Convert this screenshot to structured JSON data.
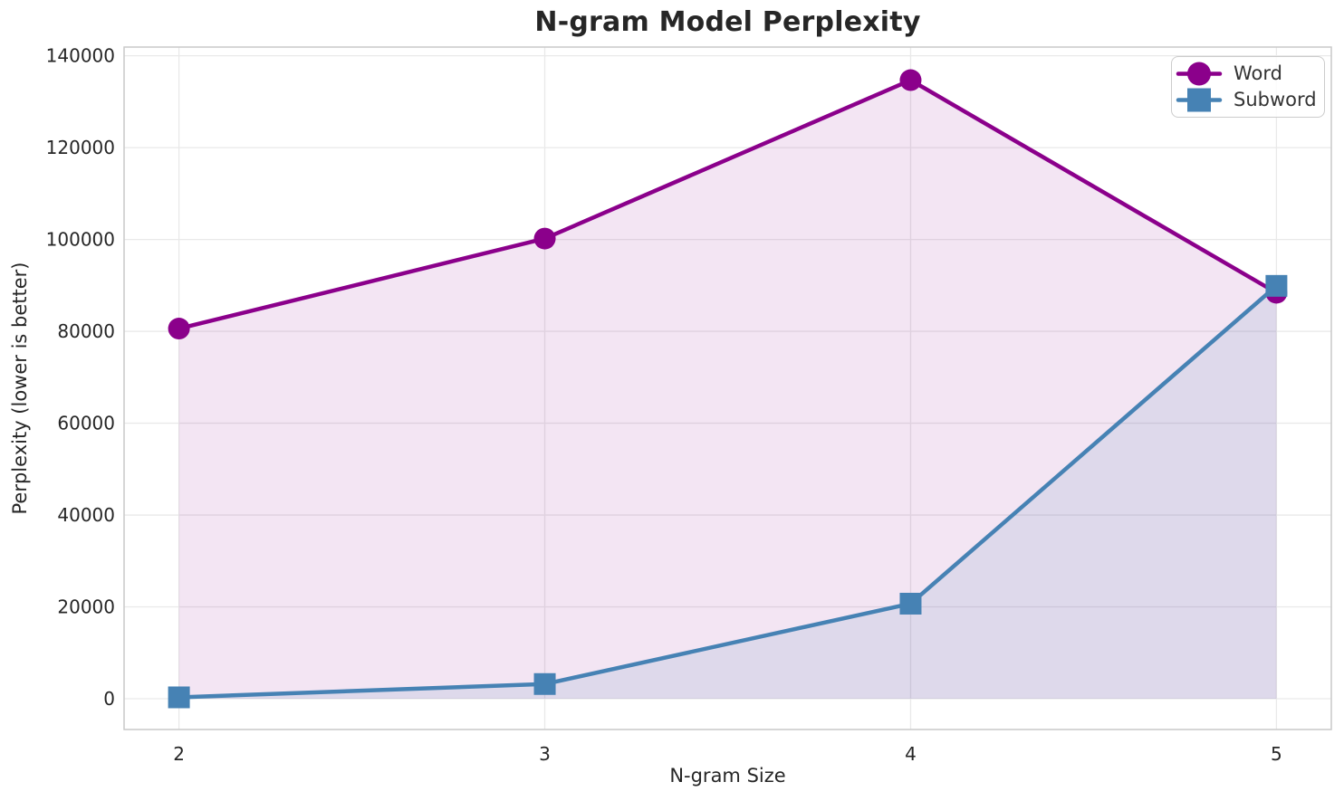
{
  "chart_data": {
    "type": "line",
    "title": "N-gram Model Perplexity",
    "xlabel": "N-gram Size",
    "ylabel": "Perplexity (lower is better)",
    "x": [
      2,
      3,
      4,
      5
    ],
    "x_tick_labels": [
      "2",
      "3",
      "4",
      "5"
    ],
    "y_ticks": [
      0,
      20000,
      40000,
      60000,
      80000,
      100000,
      120000,
      140000
    ],
    "y_tick_labels": [
      "0",
      "20000",
      "40000",
      "60000",
      "80000",
      "100000",
      "120000",
      "140000"
    ],
    "xlim": [
      1.85,
      5.15
    ],
    "ylim": [
      -6700,
      141900
    ],
    "grid": true,
    "legend_position": "upper-right",
    "fill_to_zero": true,
    "series": [
      {
        "name": "Word",
        "marker": "circle",
        "color": "#8B008B",
        "fill_alpha": 0.1,
        "values": [
          80600,
          100200,
          134700,
          88400
        ]
      },
      {
        "name": "Subword",
        "marker": "square",
        "color": "#4682B4",
        "fill_alpha": 0.12,
        "values": [
          300,
          3200,
          20700,
          89900
        ]
      }
    ],
    "style": {
      "background": "#ffffff",
      "grid_color": "#e9e9e9",
      "spine_color": "#c9c9c9",
      "text_color": "#262626"
    }
  }
}
